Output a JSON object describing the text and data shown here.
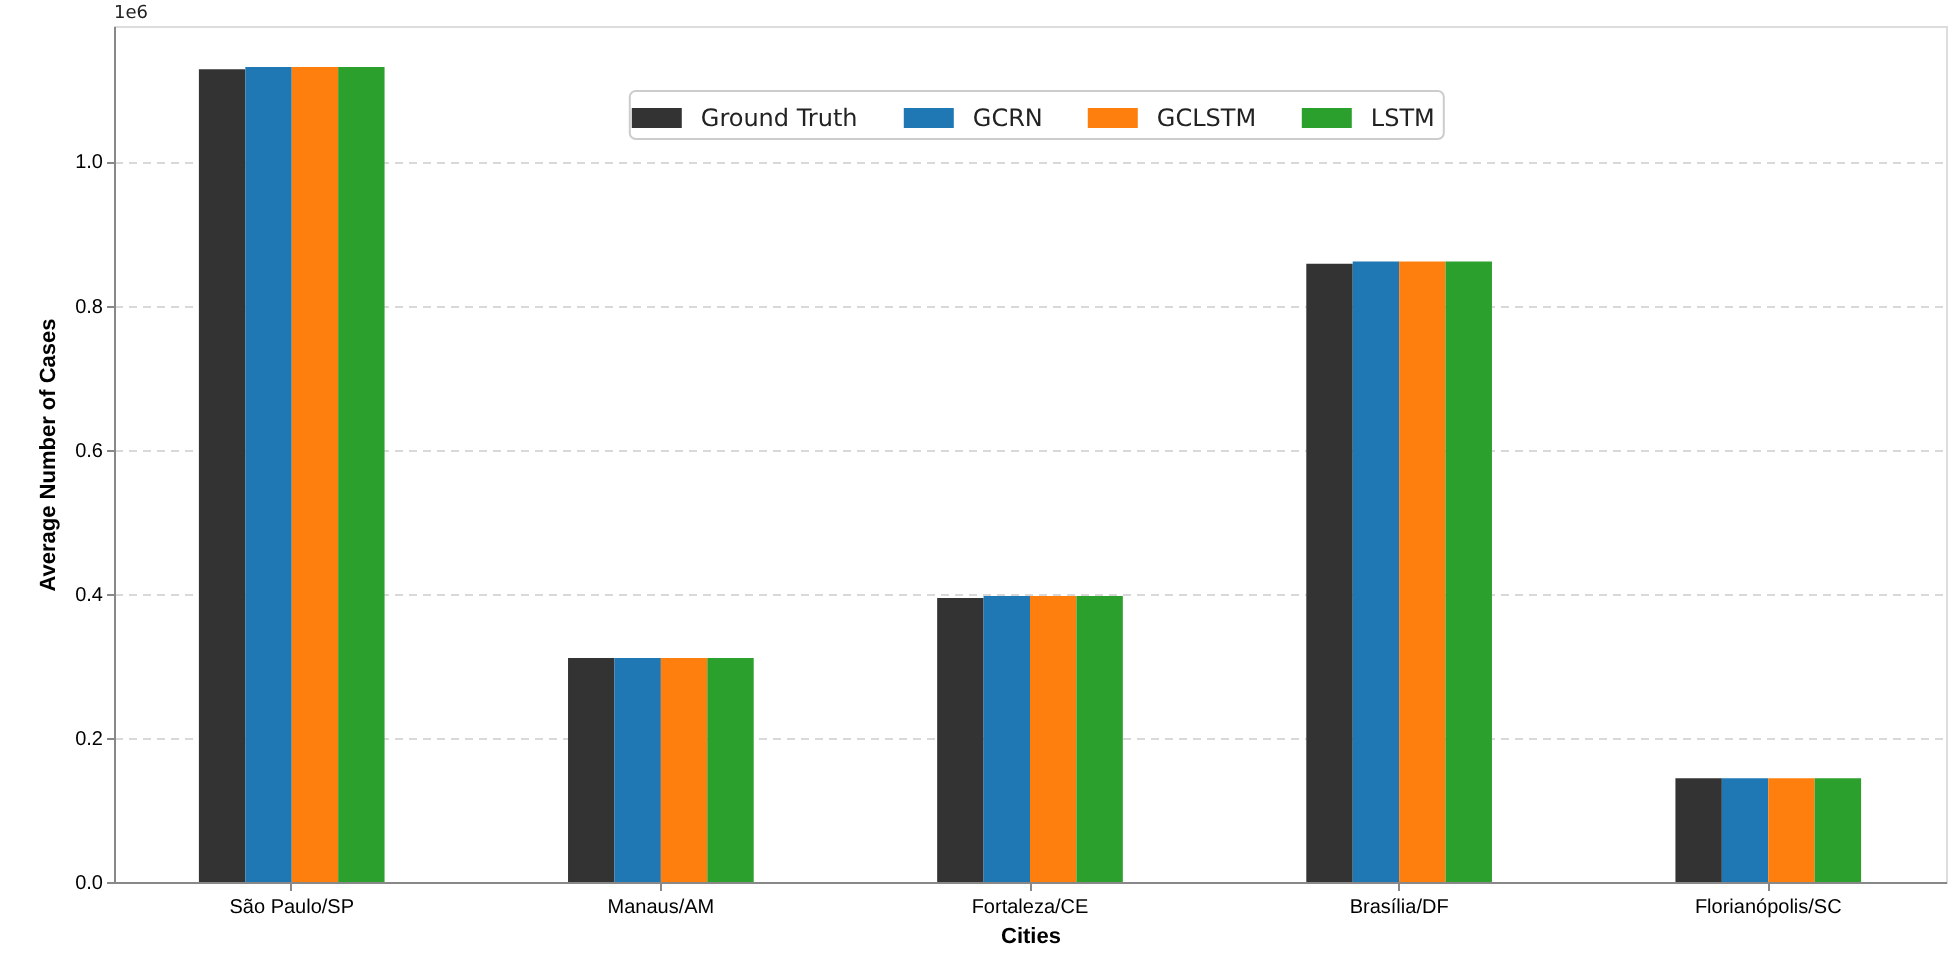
{
  "chart_data": {
    "type": "bar",
    "xlabel": "Cities",
    "ylabel": "Average Number of Cases",
    "categories": [
      "São Paulo/SP",
      "Manaus/AM",
      "Fortaleza/CE",
      "Brasília/DF",
      "Florianópolis/SC"
    ],
    "series": [
      {
        "name": "Ground Truth",
        "color": "#333333",
        "values": [
          1.128,
          0.311,
          0.394,
          0.858,
          0.144
        ]
      },
      {
        "name": "GCRN",
        "color": "#1f77b4",
        "values": [
          1.131,
          0.311,
          0.397,
          0.861,
          0.144
        ]
      },
      {
        "name": "GCLSTM",
        "color": "#ff7f0e",
        "values": [
          1.131,
          0.311,
          0.397,
          0.861,
          0.144
        ]
      },
      {
        "name": "LSTM",
        "color": "#2ca02c",
        "values": [
          1.131,
          0.311,
          0.397,
          0.861,
          0.144
        ]
      }
    ],
    "ylim": [
      0,
      1.188
    ],
    "yticks": [
      {
        "value": 0,
        "label": "0.0"
      },
      0.2,
      0.4,
      0.6,
      0.8,
      {
        "value": 1,
        "label": "1.0"
      }
    ],
    "grid": "y",
    "legend": "top",
    "annotations": [
      "1e6"
    ]
  }
}
